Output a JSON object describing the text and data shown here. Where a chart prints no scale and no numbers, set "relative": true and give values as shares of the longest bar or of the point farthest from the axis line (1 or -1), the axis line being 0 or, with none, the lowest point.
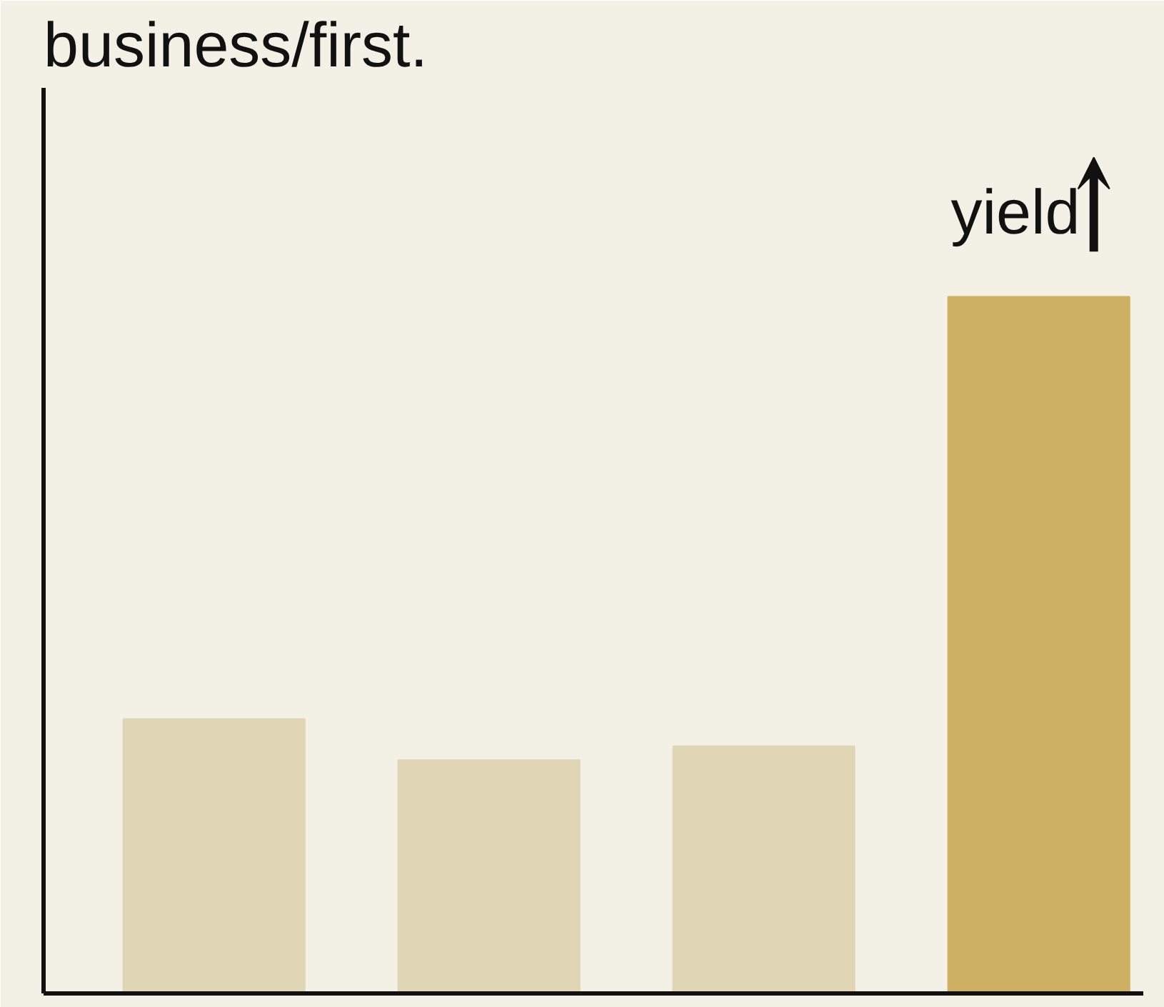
{
  "chart_data": {
    "type": "bar",
    "title": "business/first.",
    "categories": [
      null,
      null,
      null,
      null
    ],
    "relative": true,
    "values": [
      0.394,
      0.335,
      0.355,
      1
    ],
    "colors": [
      "#e0d5b5",
      "#e0d5b5",
      "#e0d5b5",
      "#cdb061"
    ],
    "annotations": [
      "yield"
    ],
    "grid": false
  }
}
